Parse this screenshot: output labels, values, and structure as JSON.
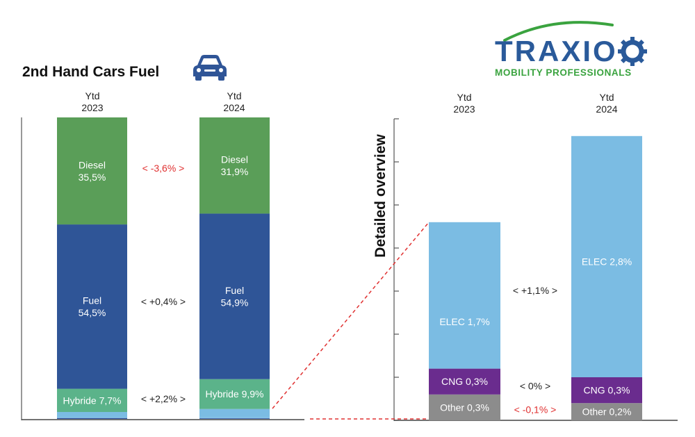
{
  "title": "2nd Hand Cars Fuel",
  "logo": {
    "brand": "TRAXIO",
    "tagline": "MOBILITY PROFESSIONALS"
  },
  "detail_title": "Detailed overview",
  "headers": {
    "left_2023": [
      "Ytd",
      "2023"
    ],
    "left_2024": [
      "Ytd",
      "2024"
    ],
    "right_2023": [
      "Ytd",
      "2023"
    ],
    "right_2024": [
      "Ytd",
      "2024"
    ]
  },
  "chart_data": [
    {
      "type": "bar",
      "stacked": true,
      "title": "2nd Hand Cars Fuel",
      "categories": [
        "Ytd 2023",
        "Ytd 2024"
      ],
      "series": [
        {
          "name": "Other",
          "color": "#2f4f9a",
          "values": [
            0.3,
            0.2
          ],
          "labels": [
            "",
            ""
          ]
        },
        {
          "name": "CNG",
          "color": "#7bbce3",
          "values": [
            0.3,
            0.3
          ],
          "labels": [
            "",
            ""
          ]
        },
        {
          "name": "ELEC",
          "color": "#7bbce3",
          "values": [
            1.7,
            2.8
          ],
          "labels": [
            "",
            ""
          ]
        },
        {
          "name": "Hybride",
          "color": "#5bb38a",
          "values": [
            7.7,
            9.9
          ],
          "labels": [
            "Hybride 7,7%",
            "Hybride 9,9%"
          ]
        },
        {
          "name": "Fuel",
          "color": "#2f5597",
          "values": [
            54.5,
            54.9
          ],
          "labels": [
            "Fuel\n54,5%",
            "Fuel\n54,9%"
          ]
        },
        {
          "name": "Diesel",
          "color": "#5a9e58",
          "values": [
            35.5,
            31.9
          ],
          "labels": [
            "Diesel\n35,5%",
            "Diesel\n31,9%"
          ]
        }
      ],
      "differences": [
        {
          "series": "Diesel",
          "label": "< -3,6% >",
          "color": "#e03030"
        },
        {
          "series": "Fuel",
          "label": "< +0,4% >",
          "color": "#222222"
        },
        {
          "series": "Hybride",
          "label": "< +2,2% >",
          "color": "#222222"
        }
      ],
      "ylim": [
        0,
        100
      ]
    },
    {
      "type": "bar",
      "stacked": true,
      "title": "Detailed overview",
      "categories": [
        "Ytd 2023",
        "Ytd 2024"
      ],
      "series": [
        {
          "name": "Other",
          "color": "#8c8c8c",
          "values": [
            0.3,
            0.2
          ],
          "labels": [
            "Other 0,3%",
            "Other 0,2%"
          ]
        },
        {
          "name": "CNG",
          "color": "#6a2c8e",
          "values": [
            0.3,
            0.3
          ],
          "labels": [
            "CNG 0,3%",
            "CNG 0,3%"
          ]
        },
        {
          "name": "ELEC",
          "color": "#7bbce3",
          "values": [
            1.7,
            2.8
          ],
          "labels": [
            "ELEC 1,7%",
            "ELEC 2,8%"
          ]
        }
      ],
      "differences": [
        {
          "series": "ELEC",
          "label": "< +1,1% >",
          "color": "#222222"
        },
        {
          "series": "CNG",
          "label": "< 0% >",
          "color": "#222222"
        },
        {
          "series": "Other",
          "label": "< -0,1% >",
          "color": "#e03030"
        }
      ],
      "ylim": [
        0,
        3.5
      ],
      "yticks": [
        0,
        0.5,
        1,
        1.5,
        2,
        2.5,
        3,
        3.5
      ]
    }
  ]
}
